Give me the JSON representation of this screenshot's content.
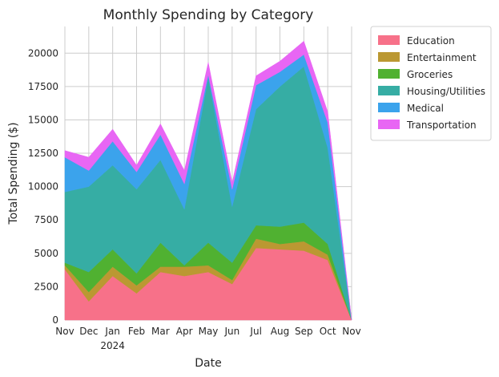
{
  "chart_data": {
    "type": "area",
    "stacked": true,
    "title": "Monthly Spending by Category",
    "xlabel": "Date",
    "ylabel": "Total Spending ($)",
    "x": [
      "2023-11",
      "2023-12",
      "2024-01",
      "2024-02",
      "2024-03",
      "2024-04",
      "2024-05",
      "2024-06",
      "2024-07",
      "2024-08",
      "2024-09",
      "2024-10",
      "2024-11"
    ],
    "x_tick_labels": [
      "Nov",
      "Dec",
      "Jan",
      "Feb",
      "Mar",
      "Apr",
      "May",
      "Jun",
      "Jul",
      "Aug",
      "Sep",
      "Oct",
      "Nov"
    ],
    "x_tick_sublabels": [
      "",
      "",
      "2024",
      "",
      "",
      "",
      "",
      "",
      "",
      "",
      "",
      "",
      ""
    ],
    "ylim": [
      0,
      22000
    ],
    "y_ticks": [
      0,
      2500,
      5000,
      7500,
      10000,
      12500,
      15000,
      17500,
      20000
    ],
    "grid": true,
    "legend_position": "outside-right",
    "series": [
      {
        "name": "Education",
        "color": "#f77189",
        "values": [
          3800,
          1400,
          3300,
          2000,
          3600,
          3300,
          3600,
          2700,
          5400,
          5300,
          5200,
          4500,
          0
        ]
      },
      {
        "name": "Entertainment",
        "color": "#bb9832",
        "values": [
          300,
          700,
          700,
          600,
          400,
          700,
          500,
          300,
          700,
          400,
          700,
          400,
          0
        ]
      },
      {
        "name": "Groceries",
        "color": "#50b131",
        "values": [
          200,
          1500,
          1300,
          900,
          1800,
          100,
          1700,
          1300,
          1000,
          1300,
          1400,
          800,
          0
        ]
      },
      {
        "name": "Housing/Utilities",
        "color": "#36ada4",
        "values": [
          5300,
          6400,
          6300,
          6300,
          6200,
          4200,
          12400,
          4200,
          8700,
          10500,
          11700,
          7200,
          0
        ]
      },
      {
        "name": "Medical",
        "color": "#3ba3ec",
        "values": [
          2600,
          1200,
          1800,
          1300,
          1900,
          1900,
          200,
          1300,
          1800,
          1100,
          900,
          1900,
          0
        ]
      },
      {
        "name": "Transportation",
        "color": "#e866f4",
        "values": [
          500,
          1000,
          900,
          500,
          800,
          1000,
          900,
          500,
          700,
          800,
          1000,
          800,
          0
        ]
      }
    ]
  }
}
